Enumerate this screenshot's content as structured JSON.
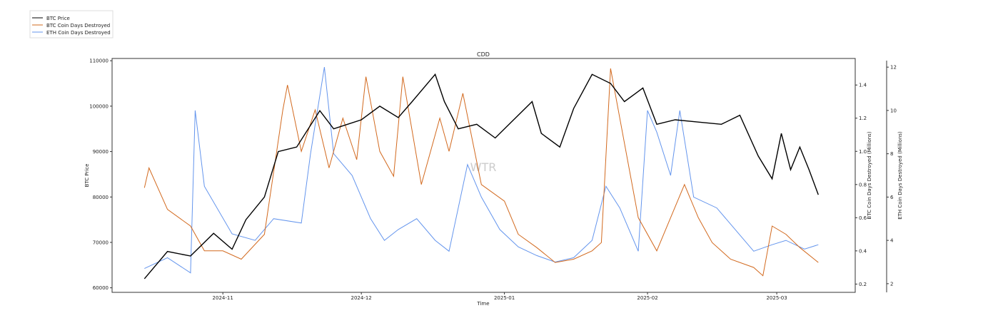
{
  "chart_data": {
    "type": "line",
    "title": "CDD",
    "xlabel": "Time",
    "ylabel_left": "BTC Price",
    "ylabel_right1": "BTC Coin Days Destroyed (Millions)",
    "ylabel_right2": "ETH Coin Days Destroyed (Millions)",
    "watermark": "WTR",
    "legend_placement": "top-left",
    "x_ticks": [
      "2024-11",
      "2024-12",
      "2025-01",
      "2025-02",
      "2025-03"
    ],
    "x_range": [
      "2024-10-08",
      "2025-03-18"
    ],
    "y_left": {
      "range": [
        59000,
        110500
      ],
      "ticks": [
        60000,
        70000,
        80000,
        90000,
        100000,
        110000
      ]
    },
    "y_right1": {
      "range": [
        0.15,
        1.56
      ],
      "ticks": [
        0.2,
        0.4,
        0.6,
        0.8,
        1.0,
        1.2,
        1.4
      ]
    },
    "y_right2": {
      "range": [
        1.6,
        12.4
      ],
      "ticks": [
        2,
        4,
        6,
        8,
        10,
        12
      ]
    },
    "series": [
      {
        "name": "BTC Price",
        "color": "#000000",
        "axis": "left",
        "points": [
          [
            "2024-10-15",
            62000
          ],
          [
            "2024-10-20",
            68000
          ],
          [
            "2024-10-25",
            67000
          ],
          [
            "2024-10-30",
            72000
          ],
          [
            "2024-11-03",
            68500
          ],
          [
            "2024-11-06",
            75000
          ],
          [
            "2024-11-10",
            80000
          ],
          [
            "2024-11-13",
            90000
          ],
          [
            "2024-11-17",
            91000
          ],
          [
            "2024-11-22",
            99000
          ],
          [
            "2024-11-25",
            95000
          ],
          [
            "2024-11-28",
            96000
          ],
          [
            "2024-12-01",
            97000
          ],
          [
            "2024-12-05",
            100000
          ],
          [
            "2024-12-09",
            97500
          ],
          [
            "2024-12-12",
            101000
          ],
          [
            "2024-12-17",
            107000
          ],
          [
            "2024-12-19",
            101000
          ],
          [
            "2024-12-22",
            95000
          ],
          [
            "2024-12-26",
            96000
          ],
          [
            "2024-12-30",
            93000
          ],
          [
            "2025-01-03",
            97000
          ],
          [
            "2025-01-07",
            101000
          ],
          [
            "2025-01-09",
            94000
          ],
          [
            "2025-01-13",
            91000
          ],
          [
            "2025-01-16",
            99500
          ],
          [
            "2025-01-20",
            107000
          ],
          [
            "2025-01-24",
            105000
          ],
          [
            "2025-01-27",
            101000
          ],
          [
            "2025-01-31",
            104000
          ],
          [
            "2025-02-03",
            96000
          ],
          [
            "2025-02-07",
            97000
          ],
          [
            "2025-02-12",
            96500
          ],
          [
            "2025-02-17",
            96000
          ],
          [
            "2025-02-21",
            98000
          ],
          [
            "2025-02-25",
            89000
          ],
          [
            "2025-02-28",
            84000
          ],
          [
            "2025-03-02",
            94000
          ],
          [
            "2025-03-04",
            86000
          ],
          [
            "2025-03-06",
            91000
          ],
          [
            "2025-03-08",
            86000
          ],
          [
            "2025-03-10",
            80500
          ]
        ]
      },
      {
        "name": "BTC Coin Days Destroyed",
        "color": "#d2691e",
        "axis": "right1",
        "points": [
          [
            "2024-10-15",
            0.78
          ],
          [
            "2024-10-16",
            0.9
          ],
          [
            "2024-10-20",
            0.65
          ],
          [
            "2024-10-25",
            0.55
          ],
          [
            "2024-10-28",
            0.4
          ],
          [
            "2024-11-01",
            0.4
          ],
          [
            "2024-11-05",
            0.35
          ],
          [
            "2024-11-10",
            0.5
          ],
          [
            "2024-11-14",
            1.25
          ],
          [
            "2024-11-15",
            1.4
          ],
          [
            "2024-11-18",
            1.0
          ],
          [
            "2024-11-21",
            1.25
          ],
          [
            "2024-11-24",
            0.9
          ],
          [
            "2024-11-27",
            1.2
          ],
          [
            "2024-11-30",
            0.95
          ],
          [
            "2024-12-02",
            1.45
          ],
          [
            "2024-12-05",
            1.0
          ],
          [
            "2024-12-08",
            0.85
          ],
          [
            "2024-12-10",
            1.45
          ],
          [
            "2024-12-14",
            0.8
          ],
          [
            "2024-12-18",
            1.2
          ],
          [
            "2024-12-20",
            1.0
          ],
          [
            "2024-12-23",
            1.35
          ],
          [
            "2024-12-27",
            0.8
          ],
          [
            "2025-01-01",
            0.7
          ],
          [
            "2025-01-04",
            0.5
          ],
          [
            "2025-01-08",
            0.42
          ],
          [
            "2025-01-12",
            0.33
          ],
          [
            "2025-01-16",
            0.35
          ],
          [
            "2025-01-20",
            0.4
          ],
          [
            "2025-01-22",
            0.45
          ],
          [
            "2025-01-24",
            1.5
          ],
          [
            "2025-01-26",
            1.2
          ],
          [
            "2025-01-30",
            0.6
          ],
          [
            "2025-02-03",
            0.4
          ],
          [
            "2025-02-06",
            0.6
          ],
          [
            "2025-02-09",
            0.8
          ],
          [
            "2025-02-12",
            0.6
          ],
          [
            "2025-02-15",
            0.45
          ],
          [
            "2025-02-19",
            0.35
          ],
          [
            "2025-02-24",
            0.3
          ],
          [
            "2025-02-26",
            0.25
          ],
          [
            "2025-02-28",
            0.55
          ],
          [
            "2025-03-03",
            0.5
          ],
          [
            "2025-03-06",
            0.42
          ],
          [
            "2025-03-10",
            0.33
          ]
        ]
      },
      {
        "name": "ETH Coin Days Destroyed",
        "color": "#6495ed",
        "axis": "right2",
        "points": [
          [
            "2024-10-15",
            2.7
          ],
          [
            "2024-10-20",
            3.2
          ],
          [
            "2024-10-25",
            2.5
          ],
          [
            "2024-10-26",
            10.0
          ],
          [
            "2024-10-28",
            6.5
          ],
          [
            "2024-11-03",
            4.3
          ],
          [
            "2024-11-08",
            4.0
          ],
          [
            "2024-11-12",
            5.0
          ],
          [
            "2024-11-18",
            4.8
          ],
          [
            "2024-11-20",
            8.0
          ],
          [
            "2024-11-23",
            12.0
          ],
          [
            "2024-11-25",
            8.0
          ],
          [
            "2024-11-29",
            7.0
          ],
          [
            "2024-12-03",
            5.0
          ],
          [
            "2024-12-06",
            4.0
          ],
          [
            "2024-12-09",
            4.5
          ],
          [
            "2024-12-13",
            5.0
          ],
          [
            "2024-12-17",
            4.0
          ],
          [
            "2024-12-20",
            3.5
          ],
          [
            "2024-12-24",
            7.5
          ],
          [
            "2024-12-27",
            6.0
          ],
          [
            "2024-12-31",
            4.5
          ],
          [
            "2025-01-04",
            3.7
          ],
          [
            "2025-01-08",
            3.3
          ],
          [
            "2025-01-12",
            3.0
          ],
          [
            "2025-01-16",
            3.2
          ],
          [
            "2025-01-20",
            4.0
          ],
          [
            "2025-01-23",
            6.5
          ],
          [
            "2025-01-26",
            5.5
          ],
          [
            "2025-01-30",
            3.5
          ],
          [
            "2025-02-01",
            10.0
          ],
          [
            "2025-02-03",
            9.0
          ],
          [
            "2025-02-06",
            7.0
          ],
          [
            "2025-02-08",
            10.0
          ],
          [
            "2025-02-11",
            6.0
          ],
          [
            "2025-02-16",
            5.5
          ],
          [
            "2025-02-20",
            4.5
          ],
          [
            "2025-02-24",
            3.5
          ],
          [
            "2025-02-28",
            3.8
          ],
          [
            "2025-03-03",
            4.0
          ],
          [
            "2025-03-07",
            3.6
          ],
          [
            "2025-03-10",
            3.8
          ]
        ]
      }
    ]
  }
}
